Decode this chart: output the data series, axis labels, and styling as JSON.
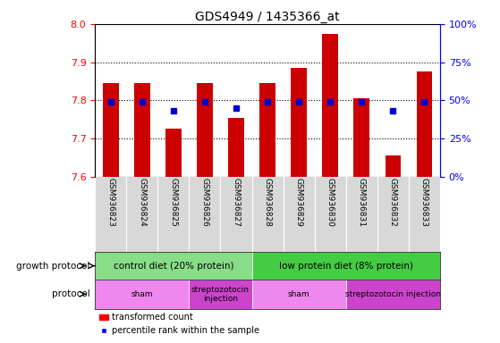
{
  "title": "GDS4949 / 1435366_at",
  "samples": [
    "GSM936823",
    "GSM936824",
    "GSM936825",
    "GSM936826",
    "GSM936827",
    "GSM936828",
    "GSM936829",
    "GSM936830",
    "GSM936831",
    "GSM936832",
    "GSM936833"
  ],
  "transformed_count": [
    7.845,
    7.845,
    7.725,
    7.845,
    7.755,
    7.845,
    7.885,
    7.975,
    7.805,
    7.655,
    7.875
  ],
  "percentile_rank": [
    49,
    49,
    43,
    49,
    45,
    49,
    49,
    49,
    49,
    43,
    49
  ],
  "ylim_left": [
    7.6,
    8.0
  ],
  "ylim_right": [
    0,
    100
  ],
  "yticks_left": [
    7.6,
    7.7,
    7.8,
    7.9,
    8.0
  ],
  "yticks_right": [
    0,
    25,
    50,
    75,
    100
  ],
  "ytick_labels_right": [
    "0%",
    "25%",
    "50%",
    "75%",
    "100%"
  ],
  "bar_color": "#cc0000",
  "marker_color": "#0000cc",
  "bar_bottom": 7.6,
  "growth_protocol_groups": [
    {
      "label": "control diet (20% protein)",
      "start": 0,
      "end": 4,
      "color": "#88dd88"
    },
    {
      "label": "low protein diet (8% protein)",
      "start": 5,
      "end": 10,
      "color": "#44cc44"
    }
  ],
  "protocol_groups": [
    {
      "label": "sham",
      "start": 0,
      "end": 2,
      "color": "#ee88ee"
    },
    {
      "label": "streptozotocin\ninjection",
      "start": 3,
      "end": 4,
      "color": "#cc44cc"
    },
    {
      "label": "sham",
      "start": 5,
      "end": 7,
      "color": "#ee88ee"
    },
    {
      "label": "streptozotocin injection",
      "start": 8,
      "end": 10,
      "color": "#cc44cc"
    }
  ],
  "grid_color": "black",
  "background_color": "#ffffff",
  "xlabel_area_color": "#d8d8d8"
}
